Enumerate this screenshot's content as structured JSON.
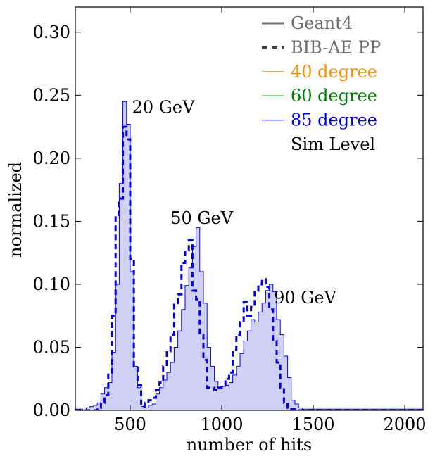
{
  "chart_data": {
    "type": "histogram",
    "xlabel": "number of hits",
    "ylabel": "normalized",
    "xlim": [
      200,
      2100
    ],
    "ylim": [
      0,
      0.32
    ],
    "xticks": [
      {
        "value": 500,
        "label": "500"
      },
      {
        "value": 1000,
        "label": "1000"
      },
      {
        "value": 1500,
        "label": "1500"
      },
      {
        "value": 2000,
        "label": "2000"
      }
    ],
    "yticks": [
      {
        "value": 0.0,
        "label": "0.00"
      },
      {
        "value": 0.05,
        "label": "0.05"
      },
      {
        "value": 0.1,
        "label": "0.10"
      },
      {
        "value": 0.15,
        "label": "0.15"
      },
      {
        "value": 0.2,
        "label": "0.20"
      },
      {
        "value": 0.25,
        "label": "0.25"
      },
      {
        "value": 0.3,
        "label": "0.30"
      }
    ],
    "bin_width": 20,
    "bin_start": 200,
    "colors": {
      "fill": "#d0d0f4",
      "geant4": "#0000ff",
      "bibae": "#0000ee",
      "legend_gray": "#6e6e6e",
      "orange": "#ff8c00",
      "green": "#008000",
      "blue": "#0000ff",
      "black": "#000000"
    },
    "series": [
      {
        "name": "Geant4",
        "style": "solid-filled",
        "values": [
          0.001,
          0.001,
          0.0,
          0.002,
          0.003,
          0.004,
          0.006,
          0.013,
          0.018,
          0.022,
          0.046,
          0.1,
          0.18,
          0.245,
          0.227,
          0.11,
          0.035,
          0.018,
          0.003,
          0.002,
          0.004,
          0.005,
          0.013,
          0.018,
          0.024,
          0.03,
          0.038,
          0.05,
          0.063,
          0.08,
          0.099,
          0.113,
          0.13,
          0.145,
          0.11,
          0.085,
          0.05,
          0.035,
          0.023,
          0.017,
          0.019,
          0.02,
          0.022,
          0.028,
          0.035,
          0.045,
          0.055,
          0.063,
          0.072,
          0.07,
          0.078,
          0.085,
          0.095,
          0.1,
          0.094,
          0.072,
          0.06,
          0.043,
          0.026,
          0.008,
          0.005,
          0.002,
          0.001,
          0.001,
          0.001,
          0.001,
          0.001,
          0.001,
          0.001,
          0.001,
          0.001,
          0.001,
          0.001,
          0.001,
          0.001,
          0.001,
          0.001,
          0.001,
          0.001,
          0.001,
          0.001,
          0.001,
          0.001,
          0.001,
          0.001,
          0.001,
          0.001,
          0.001,
          0.001,
          0.001,
          0.001,
          0.001,
          0.001,
          0.001,
          0.001
        ]
      },
      {
        "name": "BIB-AE PP",
        "style": "dashed",
        "values": [
          0.0,
          0.0,
          0.0,
          0.0,
          0.0,
          0.0,
          0.002,
          0.006,
          0.012,
          0.03,
          0.075,
          0.155,
          0.168,
          0.225,
          0.215,
          0.12,
          0.035,
          0.02,
          0.003,
          0.006,
          0.008,
          0.01,
          0.016,
          0.022,
          0.035,
          0.047,
          0.06,
          0.085,
          0.092,
          0.117,
          0.127,
          0.135,
          0.095,
          0.088,
          0.06,
          0.04,
          0.018,
          0.018,
          0.016,
          0.018,
          0.02,
          0.025,
          0.03,
          0.048,
          0.06,
          0.07,
          0.086,
          0.075,
          0.082,
          0.095,
          0.1,
          0.104,
          0.098,
          0.08,
          0.055,
          0.038,
          0.018,
          0.006,
          0.002,
          0.001,
          0.0,
          0.0,
          0.0,
          0.0,
          0.0,
          0.0,
          0.0,
          0.0,
          0.0,
          0.0,
          0.0,
          0.0,
          0.0,
          0.0,
          0.0,
          0.0,
          0.0,
          0.0,
          0.0,
          0.0,
          0.0,
          0.0,
          0.0,
          0.0,
          0.0,
          0.0,
          0.0,
          0.0,
          0.0,
          0.0,
          0.0,
          0.0,
          0.0,
          0.0,
          0.0
        ]
      }
    ],
    "legend": [
      {
        "label": "Geant4",
        "line": "solid",
        "color": "#6e6e6e",
        "text_color": "#6e6e6e"
      },
      {
        "label": "BIB-AE PP",
        "line": "dashed",
        "color": "#3a3a3a",
        "text_color": "#6e6e6e"
      },
      {
        "label": "40 degree",
        "line": "solid-thin",
        "color": "#ff8c00",
        "text_color": "#ff8c00"
      },
      {
        "label": "60 degree",
        "line": "solid-thin",
        "color": "#008000",
        "text_color": "#008000"
      },
      {
        "label": "85 degree",
        "line": "solid-thin",
        "color": "#0000ff",
        "text_color": "#0000ff"
      },
      {
        "label": "Sim Level",
        "line": "none",
        "color": "#000000",
        "text_color": "#000000"
      }
    ],
    "annotations": [
      {
        "text": "20 GeV",
        "x": 510,
        "y": 0.236
      },
      {
        "text": "50 GeV",
        "x": 720,
        "y": 0.148
      },
      {
        "text": "90 GeV",
        "x": 1285,
        "y": 0.085
      }
    ]
  }
}
